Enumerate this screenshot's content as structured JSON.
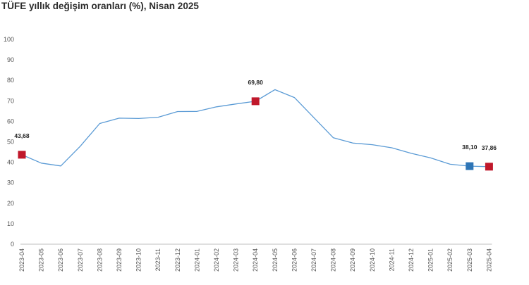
{
  "chart_data": {
    "type": "line",
    "title": "TÜFE yıllık değişim oranları (%), Nisan 2025",
    "xlabel": "",
    "ylabel": "",
    "ylim": [
      0,
      100
    ],
    "yticks": [
      0,
      10,
      20,
      30,
      40,
      50,
      60,
      70,
      80,
      90,
      100
    ],
    "grid": false,
    "categories": [
      "2023-04",
      "2023-05",
      "2023-06",
      "2023-07",
      "2023-08",
      "2023-09",
      "2023-10",
      "2023-11",
      "2023-12",
      "2024-01",
      "2024-02",
      "2024-03",
      "2024-04",
      "2024-05",
      "2024-06",
      "2024-07",
      "2024-08",
      "2024-09",
      "2024-10",
      "2024-11",
      "2024-12",
      "2025-01",
      "2025-02",
      "2025-03",
      "2025-04"
    ],
    "series": [
      {
        "values": [
          43.68,
          39.59,
          38.21,
          47.83,
          58.94,
          61.53,
          61.36,
          61.98,
          64.77,
          64.86,
          67.07,
          68.5,
          69.8,
          75.45,
          71.6,
          61.78,
          51.97,
          49.38,
          48.58,
          47.09,
          44.38,
          42.12,
          39.05,
          38.1,
          37.86
        ],
        "color": "#5b9bd5"
      }
    ],
    "highlights": [
      {
        "index": 0,
        "label": "43,68",
        "color": "#c0182b"
      },
      {
        "index": 12,
        "label": "69,80",
        "color": "#c0182b"
      },
      {
        "index": 23,
        "label": "38,10",
        "color": "#2e75b6"
      },
      {
        "index": 24,
        "label": "37,86",
        "color": "#c0182b"
      }
    ]
  }
}
